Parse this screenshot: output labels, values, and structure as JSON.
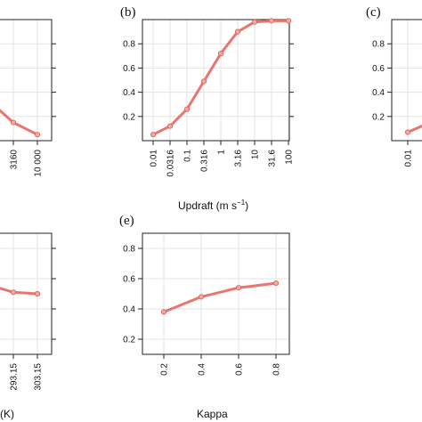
{
  "colors": {
    "series": "#e8665f",
    "marker_fill": "#f3aaa5"
  },
  "chart_data": [
    {
      "type": "line",
      "panel": "a (partial)",
      "title": "",
      "xlabel": "",
      "x_ticks": [
        "3160",
        "10 000"
      ],
      "values": [
        0.3,
        0.15,
        0.05
      ],
      "grid": true
    },
    {
      "type": "line",
      "panel": "b",
      "title": "(b)",
      "xlabel": "Updraft (m s",
      "xlabel_sup": "−1",
      "xlabel_end": ")",
      "x_scale": "log",
      "categories": [
        "0.01",
        "0.0316",
        "0.1",
        "0.316",
        "1",
        "3.16",
        "10",
        "31.6",
        "100"
      ],
      "values": [
        0.05,
        0.12,
        0.26,
        0.49,
        0.72,
        0.9,
        0.98,
        0.99,
        0.99
      ],
      "y_ticks": [
        "0.2",
        "0.4",
        "0.6",
        "0.8"
      ],
      "ylim": [
        0,
        1
      ],
      "grid": true
    },
    {
      "type": "line",
      "panel": "c (partial)",
      "title": "(c)",
      "xlabel": "",
      "x_ticks": [
        "0.01"
      ],
      "values": [
        0.07,
        0.14
      ],
      "y_ticks": [
        "0.2",
        "0.4",
        "0.6",
        "0.8"
      ],
      "ylim": [
        0,
        1
      ],
      "grid": true
    },
    {
      "type": "line",
      "panel": "d (partial)",
      "title": "",
      "xlabel": "(K)",
      "x_ticks": [
        "293.15",
        "303.15"
      ],
      "values": [
        0.55,
        0.51,
        0.5
      ],
      "grid": true
    },
    {
      "type": "line",
      "panel": "e",
      "title": "(e)",
      "xlabel": "Kappa",
      "categories": [
        "0.2",
        "0.4",
        "0.6",
        "0.8"
      ],
      "x": [
        0.2,
        0.4,
        0.6,
        0.8
      ],
      "values": [
        0.38,
        0.48,
        0.54,
        0.57
      ],
      "y_ticks": [
        "0.2",
        "0.4",
        "0.6",
        "0.8"
      ],
      "ylim": [
        0.1,
        0.9
      ],
      "grid": true
    }
  ]
}
